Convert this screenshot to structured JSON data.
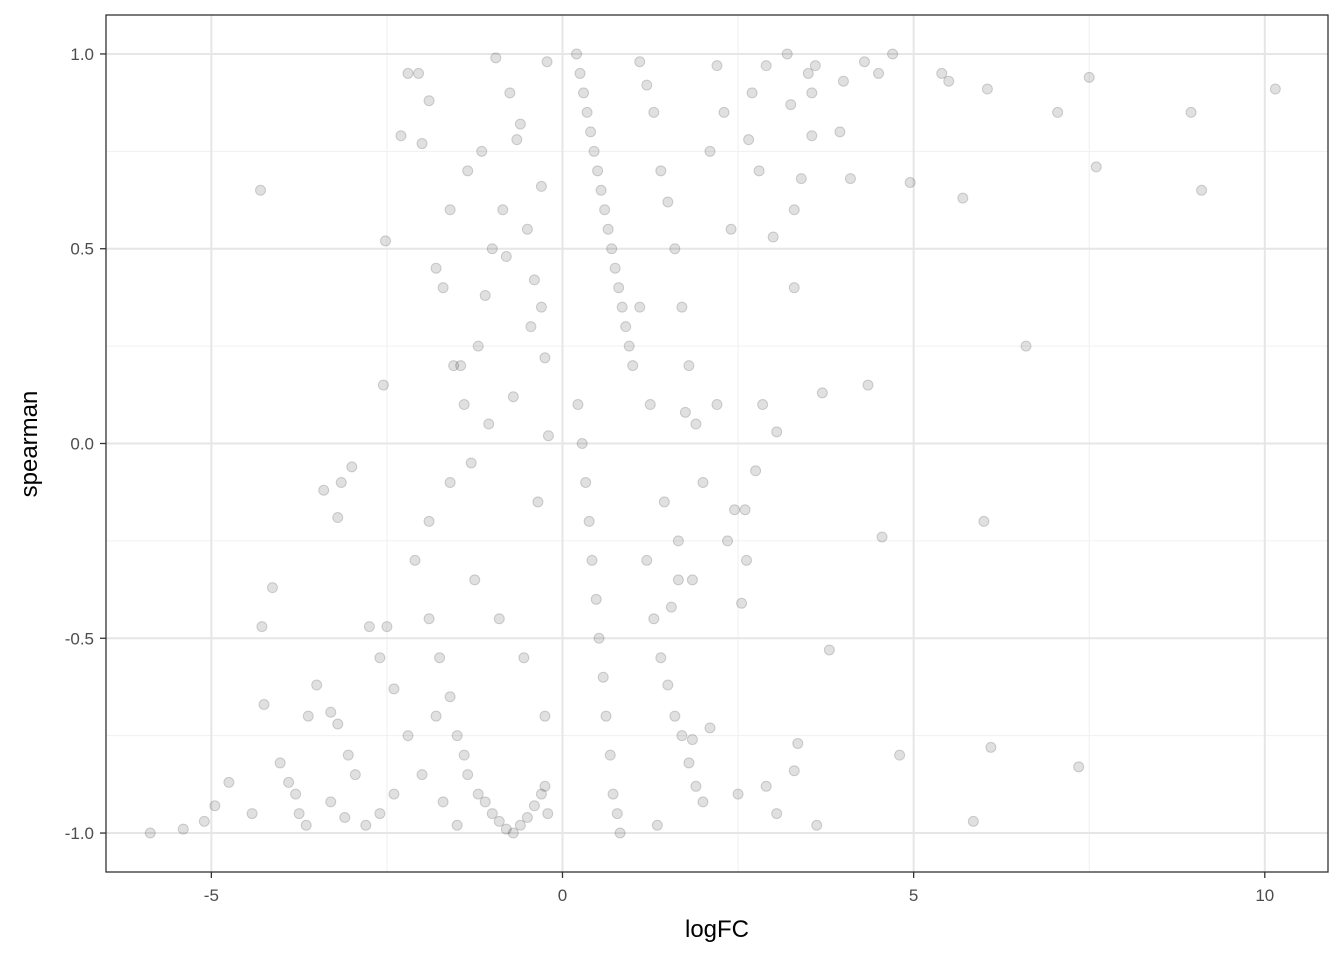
{
  "chart_data": {
    "type": "scatter",
    "title": "",
    "xlabel": "logFC",
    "ylabel": "spearman",
    "xlim": [
      -6.5,
      10.9
    ],
    "ylim": [
      -1.1,
      1.1
    ],
    "x_ticks": [
      -5,
      0,
      5,
      10
    ],
    "x_tick_labels": [
      "-5",
      "0",
      "5",
      "10"
    ],
    "y_ticks": [
      -1.0,
      -0.5,
      0.0,
      0.5,
      1.0
    ],
    "y_tick_labels": [
      "-1.0",
      "-0.5",
      "0.0",
      "0.5",
      "1.0"
    ],
    "grid": true,
    "legend": "none",
    "marker": {
      "color": "#000000",
      "opacity": 0.12
    },
    "points": [
      [
        -5.87,
        -1.0
      ],
      [
        -5.4,
        -0.99
      ],
      [
        -5.1,
        -0.97
      ],
      [
        -4.95,
        -0.93
      ],
      [
        -4.75,
        -0.87
      ],
      [
        -4.3,
        0.65
      ],
      [
        -4.42,
        -0.95
      ],
      [
        -4.25,
        -0.67
      ],
      [
        -4.28,
        -0.47
      ],
      [
        -4.13,
        -0.37
      ],
      [
        -4.02,
        -0.82
      ],
      [
        -3.9,
        -0.87
      ],
      [
        -3.8,
        -0.9
      ],
      [
        -3.75,
        -0.95
      ],
      [
        -3.65,
        -0.98
      ],
      [
        -3.4,
        -0.12
      ],
      [
        -3.3,
        -0.69
      ],
      [
        -3.2,
        -0.72
      ],
      [
        -3.05,
        -0.8
      ],
      [
        -2.95,
        -0.85
      ],
      [
        -3.2,
        -0.19
      ],
      [
        -3.15,
        -0.1
      ],
      [
        -3.0,
        -0.06
      ],
      [
        -2.75,
        -0.47
      ],
      [
        -2.5,
        -0.47
      ],
      [
        -2.6,
        -0.55
      ],
      [
        -2.4,
        -0.63
      ],
      [
        -3.5,
        -0.62
      ],
      [
        -3.62,
        -0.7
      ],
      [
        -2.52,
        0.52
      ],
      [
        -2.55,
        0.15
      ],
      [
        -2.3,
        0.79
      ],
      [
        -2.2,
        0.95
      ],
      [
        -2.05,
        0.95
      ],
      [
        -2.0,
        0.77
      ],
      [
        -1.9,
        0.88
      ],
      [
        -1.8,
        0.45
      ],
      [
        -1.7,
        0.4
      ],
      [
        -1.6,
        0.6
      ],
      [
        -1.55,
        0.2
      ],
      [
        -1.45,
        0.2
      ],
      [
        -1.35,
        0.7
      ],
      [
        -1.3,
        -0.05
      ],
      [
        -1.25,
        -0.35
      ],
      [
        -1.15,
        0.75
      ],
      [
        -1.1,
        0.38
      ],
      [
        -1.05,
        0.05
      ],
      [
        -0.95,
        0.99
      ],
      [
        -0.9,
        -0.45
      ],
      [
        -0.8,
        0.48
      ],
      [
        -0.7,
        0.12
      ],
      [
        -0.6,
        0.82
      ],
      [
        -0.55,
        -0.55
      ],
      [
        -0.45,
        0.3
      ],
      [
        -0.35,
        -0.15
      ],
      [
        -0.3,
        0.66
      ],
      [
        -0.25,
        -0.7
      ],
      [
        -0.22,
        0.98
      ],
      [
        -0.21,
        -0.95
      ],
      [
        -0.2,
        0.02
      ],
      [
        -2.1,
        -0.3
      ],
      [
        -1.9,
        -0.45
      ],
      [
        -1.75,
        -0.55
      ],
      [
        -1.6,
        -0.65
      ],
      [
        -1.5,
        -0.75
      ],
      [
        -1.4,
        -0.8
      ],
      [
        -1.35,
        -0.85
      ],
      [
        -1.2,
        -0.9
      ],
      [
        -1.1,
        -0.92
      ],
      [
        -1.0,
        -0.95
      ],
      [
        -0.9,
        -0.97
      ],
      [
        -0.8,
        -0.99
      ],
      [
        -0.7,
        -1.0
      ],
      [
        -0.6,
        -0.98
      ],
      [
        -0.5,
        -0.96
      ],
      [
        -0.4,
        -0.93
      ],
      [
        -0.3,
        -0.9
      ],
      [
        -0.25,
        -0.88
      ],
      [
        -1.8,
        -0.7
      ],
      [
        -2.2,
        -0.75
      ],
      [
        -2.0,
        -0.85
      ],
      [
        -1.7,
        -0.92
      ],
      [
        -1.5,
        -0.98
      ],
      [
        -2.4,
        -0.9
      ],
      [
        -2.6,
        -0.95
      ],
      [
        -2.8,
        -0.98
      ],
      [
        -3.1,
        -0.96
      ],
      [
        -3.3,
        -0.92
      ],
      [
        -1.9,
        -0.2
      ],
      [
        -1.6,
        -0.1
      ],
      [
        -1.4,
        0.1
      ],
      [
        -1.2,
        0.25
      ],
      [
        -1.0,
        0.5
      ],
      [
        -0.85,
        0.6
      ],
      [
        -0.75,
        0.9
      ],
      [
        -0.65,
        0.78
      ],
      [
        -0.5,
        0.55
      ],
      [
        -0.4,
        0.42
      ],
      [
        -0.3,
        0.35
      ],
      [
        -0.25,
        0.22
      ],
      [
        0.2,
        1.0
      ],
      [
        0.25,
        0.95
      ],
      [
        0.3,
        0.9
      ],
      [
        0.35,
        0.85
      ],
      [
        0.4,
        0.8
      ],
      [
        0.45,
        0.75
      ],
      [
        0.5,
        0.7
      ],
      [
        0.55,
        0.65
      ],
      [
        0.6,
        0.6
      ],
      [
        0.65,
        0.55
      ],
      [
        0.7,
        0.5
      ],
      [
        0.75,
        0.45
      ],
      [
        0.8,
        0.4
      ],
      [
        0.85,
        0.35
      ],
      [
        0.9,
        0.3
      ],
      [
        0.95,
        0.25
      ],
      [
        1.0,
        0.2
      ],
      [
        0.22,
        0.1
      ],
      [
        0.28,
        0.0
      ],
      [
        0.33,
        -0.1
      ],
      [
        0.38,
        -0.2
      ],
      [
        0.42,
        -0.3
      ],
      [
        0.48,
        -0.4
      ],
      [
        0.52,
        -0.5
      ],
      [
        0.58,
        -0.6
      ],
      [
        0.62,
        -0.7
      ],
      [
        0.68,
        -0.8
      ],
      [
        0.72,
        -0.9
      ],
      [
        0.78,
        -0.95
      ],
      [
        0.82,
        -1.0
      ],
      [
        1.1,
        0.98
      ],
      [
        1.2,
        0.92
      ],
      [
        1.3,
        0.85
      ],
      [
        1.4,
        0.7
      ],
      [
        1.5,
        0.62
      ],
      [
        1.6,
        0.5
      ],
      [
        1.7,
        0.35
      ],
      [
        1.8,
        0.2
      ],
      [
        1.9,
        0.05
      ],
      [
        2.0,
        -0.1
      ],
      [
        1.2,
        -0.3
      ],
      [
        1.3,
        -0.45
      ],
      [
        1.4,
        -0.55
      ],
      [
        1.5,
        -0.62
      ],
      [
        1.6,
        -0.7
      ],
      [
        1.7,
        -0.75
      ],
      [
        1.8,
        -0.82
      ],
      [
        1.9,
        -0.88
      ],
      [
        2.0,
        -0.92
      ],
      [
        1.35,
        -0.98
      ],
      [
        1.1,
        0.35
      ],
      [
        1.25,
        0.1
      ],
      [
        1.45,
        -0.15
      ],
      [
        1.65,
        -0.25
      ],
      [
        1.85,
        -0.35
      ],
      [
        2.1,
        0.75
      ],
      [
        2.2,
        0.97
      ],
      [
        2.3,
        0.85
      ],
      [
        2.4,
        0.55
      ],
      [
        2.45,
        -0.17
      ],
      [
        2.55,
        -0.41
      ],
      [
        2.6,
        -0.17
      ],
      [
        2.62,
        -0.3
      ],
      [
        2.7,
        0.9
      ],
      [
        2.75,
        -0.07
      ],
      [
        2.85,
        0.1
      ],
      [
        2.9,
        0.97
      ],
      [
        3.0,
        0.53
      ],
      [
        3.05,
        0.03
      ],
      [
        3.2,
        1.0
      ],
      [
        3.25,
        0.87
      ],
      [
        3.3,
        -0.84
      ],
      [
        3.35,
        -0.77
      ],
      [
        3.4,
        0.68
      ],
      [
        3.5,
        0.95
      ],
      [
        3.55,
        0.79
      ],
      [
        3.6,
        0.97
      ],
      [
        3.62,
        -0.98
      ],
      [
        3.7,
        0.13
      ],
      [
        3.8,
        -0.53
      ],
      [
        3.95,
        0.8
      ],
      [
        4.0,
        0.93
      ],
      [
        4.1,
        0.68
      ],
      [
        4.3,
        0.98
      ],
      [
        4.35,
        0.15
      ],
      [
        4.55,
        -0.24
      ],
      [
        4.7,
        1.0
      ],
      [
        4.8,
        -0.8
      ],
      [
        4.95,
        0.67
      ],
      [
        5.4,
        0.95
      ],
      [
        5.5,
        0.93
      ],
      [
        5.7,
        0.63
      ],
      [
        5.85,
        -0.97
      ],
      [
        6.0,
        -0.2
      ],
      [
        6.05,
        0.91
      ],
      [
        6.1,
        -0.78
      ],
      [
        6.6,
        0.25
      ],
      [
        7.05,
        0.85
      ],
      [
        7.35,
        -0.83
      ],
      [
        7.5,
        0.94
      ],
      [
        7.6,
        0.71
      ],
      [
        8.95,
        0.85
      ],
      [
        9.1,
        0.65
      ],
      [
        10.15,
        0.91
      ],
      [
        3.3,
        0.6
      ],
      [
        3.3,
        0.4
      ],
      [
        2.8,
        0.7
      ],
      [
        2.35,
        -0.25
      ],
      [
        2.2,
        0.1
      ],
      [
        2.5,
        -0.9
      ],
      [
        2.9,
        -0.88
      ],
      [
        3.05,
        -0.95
      ],
      [
        3.55,
        0.9
      ],
      [
        4.5,
        0.95
      ],
      [
        2.65,
        0.78
      ],
      [
        1.55,
        -0.42
      ],
      [
        1.65,
        -0.35
      ],
      [
        1.85,
        -0.76
      ],
      [
        2.1,
        -0.73
      ],
      [
        1.75,
        0.08
      ]
    ]
  }
}
